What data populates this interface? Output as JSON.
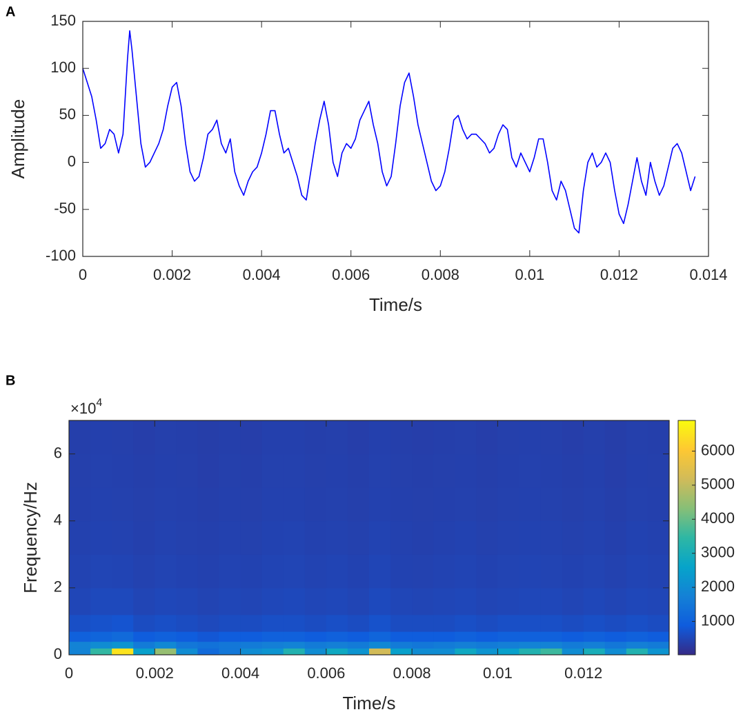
{
  "chart_data": [
    {
      "type": "line",
      "panel_label": "A",
      "xlabel": "Time/s",
      "ylabel": "Amplitude",
      "color": "#0000ff",
      "xlim": [
        0,
        0.014
      ],
      "xticks": [
        0,
        0.002,
        0.004,
        0.006,
        0.008,
        0.01,
        0.012,
        0.014
      ],
      "ylim": [
        -100,
        150
      ],
      "yticks": [
        -100,
        -50,
        0,
        50,
        100,
        150
      ],
      "x": [
        0,
        0.0001,
        0.0002,
        0.0003,
        0.0004,
        0.0005,
        0.0006,
        0.0007,
        0.0008,
        0.0009,
        0.001,
        0.00105,
        0.0011,
        0.0012,
        0.0013,
        0.0014,
        0.0015,
        0.0016,
        0.0017,
        0.0018,
        0.0019,
        0.002,
        0.0021,
        0.0022,
        0.0023,
        0.0024,
        0.0025,
        0.0026,
        0.0027,
        0.0028,
        0.0029,
        0.003,
        0.0031,
        0.0032,
        0.0033,
        0.0034,
        0.0035,
        0.0036,
        0.0037,
        0.0038,
        0.0039,
        0.004,
        0.0041,
        0.0042,
        0.0043,
        0.0044,
        0.0045,
        0.0046,
        0.0047,
        0.0048,
        0.0049,
        0.005,
        0.0051,
        0.0052,
        0.0053,
        0.0054,
        0.0055,
        0.0056,
        0.0057,
        0.0058,
        0.0059,
        0.006,
        0.0061,
        0.0062,
        0.0063,
        0.0064,
        0.0065,
        0.0066,
        0.0067,
        0.0068,
        0.0069,
        0.007,
        0.0071,
        0.0072,
        0.0073,
        0.0074,
        0.0075,
        0.0076,
        0.0077,
        0.0078,
        0.0079,
        0.008,
        0.0081,
        0.0082,
        0.0083,
        0.0084,
        0.0085,
        0.0086,
        0.0087,
        0.0088,
        0.0089,
        0.009,
        0.0091,
        0.0092,
        0.0093,
        0.0094,
        0.0095,
        0.0096,
        0.0097,
        0.0098,
        0.0099,
        0.01,
        0.0101,
        0.0102,
        0.0103,
        0.0104,
        0.0105,
        0.0106,
        0.0107,
        0.0108,
        0.0109,
        0.011,
        0.0111,
        0.0112,
        0.0113,
        0.0114,
        0.0115,
        0.0116,
        0.0117,
        0.0118,
        0.0119,
        0.012,
        0.0121,
        0.0122,
        0.0123,
        0.0124,
        0.0125,
        0.0126,
        0.0127,
        0.0128,
        0.0129,
        0.013,
        0.0131,
        0.0132,
        0.0133,
        0.0134,
        0.0135,
        0.0136,
        0.0137
      ],
      "values": [
        100,
        85,
        70,
        45,
        15,
        20,
        35,
        30,
        10,
        30,
        110,
        140,
        120,
        70,
        20,
        -5,
        0,
        10,
        20,
        35,
        60,
        80,
        85,
        60,
        20,
        -10,
        -20,
        -15,
        5,
        30,
        35,
        45,
        20,
        10,
        25,
        -10,
        -25,
        -35,
        -20,
        -10,
        -5,
        10,
        30,
        55,
        55,
        30,
        10,
        15,
        0,
        -15,
        -35,
        -40,
        -10,
        20,
        45,
        65,
        40,
        0,
        -15,
        10,
        20,
        15,
        25,
        45,
        55,
        65,
        40,
        20,
        -10,
        -25,
        -15,
        20,
        60,
        85,
        95,
        70,
        40,
        20,
        0,
        -20,
        -30,
        -25,
        -10,
        15,
        45,
        50,
        35,
        25,
        30,
        30,
        25,
        20,
        10,
        15,
        30,
        40,
        35,
        5,
        -5,
        10,
        0,
        -10,
        5,
        25,
        25,
        0,
        -30,
        -40,
        -20,
        -30,
        -50,
        -70,
        -75,
        -30,
        0,
        10,
        -5,
        0,
        10,
        0,
        -30,
        -55,
        -65,
        -45,
        -20,
        5,
        -20,
        -35,
        0,
        -20,
        -35,
        -25,
        -5,
        15,
        20,
        10,
        -10,
        -30,
        -15
      ]
    },
    {
      "type": "heatmap",
      "panel_label": "B",
      "xlabel": "Time/s",
      "ylabel": "Frequency/Hz",
      "y_offset_text": "×10",
      "y_offset_exponent": "4",
      "xlim": [
        0,
        0.014
      ],
      "xticks": [
        0,
        0.002,
        0.004,
        0.006,
        0.008,
        0.01,
        0.012
      ],
      "ylim": [
        0,
        70000
      ],
      "yticks": [
        0,
        {
          "value": 20000,
          "label": "2"
        },
        {
          "value": 40000,
          "label": "4"
        },
        {
          "value": 60000,
          "label": "6"
        }
      ],
      "clim": [
        20,
        6900
      ],
      "cticks": [
        1000,
        2000,
        3000,
        4000,
        5000,
        6000
      ],
      "colormap": [
        "#352a87",
        "#0f5cdd",
        "#1481d6",
        "#06a4ca",
        "#2eb7a4",
        "#87bf77",
        "#d1bb59",
        "#fec832",
        "#f9fb0e"
      ],
      "x_bins": [
        0,
        0.0005,
        0.001,
        0.0015,
        0.002,
        0.0025,
        0.003,
        0.0035,
        0.004,
        0.0045,
        0.005,
        0.0055,
        0.006,
        0.0065,
        0.007,
        0.0075,
        0.008,
        0.0085,
        0.009,
        0.0095,
        0.01,
        0.0105,
        0.011,
        0.0115,
        0.012,
        0.0125,
        0.013,
        0.0135,
        0.014
      ],
      "y_bins": [
        0,
        2000,
        4000,
        7000,
        12000,
        20000,
        30000,
        40000,
        50000,
        60000,
        70000
      ],
      "z": [
        [
          1800,
          3500,
          6500,
          2500,
          4500,
          2000,
          1200,
          1500,
          2000,
          2200,
          3200,
          2000,
          2800,
          2200,
          5200,
          2500,
          2000,
          2000,
          2800,
          2200,
          2500,
          3200,
          3600,
          2000,
          3000,
          2000,
          3200,
          2200
        ],
        [
          1800,
          2000,
          2200,
          1600,
          1900,
          1500,
          1400,
          1500,
          1600,
          1700,
          1800,
          1600,
          1700,
          1600,
          1900,
          1600,
          1500,
          1600,
          1700,
          1600,
          1700,
          1800,
          1800,
          1600,
          1700,
          1500,
          1700,
          1600
        ],
        [
          1000,
          1100,
          1200,
          900,
          1000,
          900,
          800,
          900,
          900,
          1000,
          1000,
          900,
          1000,
          900,
          1100,
          900,
          900,
          900,
          1000,
          900,
          1000,
          1000,
          1000,
          900,
          1000,
          900,
          1000,
          900
        ],
        [
          650,
          700,
          750,
          600,
          650,
          600,
          550,
          600,
          600,
          650,
          650,
          600,
          650,
          600,
          700,
          600,
          600,
          600,
          650,
          600,
          650,
          650,
          650,
          600,
          650,
          600,
          650,
          600
        ],
        [
          500,
          550,
          550,
          480,
          520,
          500,
          460,
          500,
          480,
          520,
          540,
          500,
          520,
          480,
          560,
          500,
          480,
          500,
          520,
          480,
          500,
          520,
          520,
          480,
          520,
          480,
          520,
          500
        ],
        [
          450,
          480,
          470,
          430,
          460,
          440,
          420,
          450,
          440,
          470,
          480,
          450,
          470,
          440,
          490,
          440,
          430,
          450,
          470,
          440,
          460,
          470,
          460,
          440,
          460,
          430,
          470,
          450
        ],
        [
          420,
          440,
          430,
          400,
          430,
          410,
          400,
          420,
          410,
          440,
          450,
          420,
          430,
          410,
          450,
          420,
          400,
          420,
          440,
          410,
          430,
          440,
          430,
          410,
          430,
          400,
          440,
          420
        ],
        [
          400,
          420,
          410,
          390,
          410,
          400,
          380,
          400,
          390,
          420,
          420,
          400,
          410,
          390,
          420,
          400,
          390,
          400,
          410,
          390,
          410,
          420,
          410,
          390,
          410,
          380,
          410,
          400
        ],
        [
          390,
          410,
          400,
          380,
          400,
          390,
          370,
          390,
          380,
          410,
          410,
          390,
          400,
          380,
          410,
          390,
          380,
          390,
          400,
          380,
          400,
          410,
          400,
          380,
          400,
          370,
          400,
          390
        ],
        [
          380,
          400,
          390,
          370,
          390,
          380,
          360,
          380,
          370,
          400,
          400,
          380,
          390,
          370,
          400,
          380,
          370,
          380,
          390,
          370,
          390,
          400,
          390,
          370,
          390,
          360,
          390,
          380
        ]
      ]
    }
  ]
}
